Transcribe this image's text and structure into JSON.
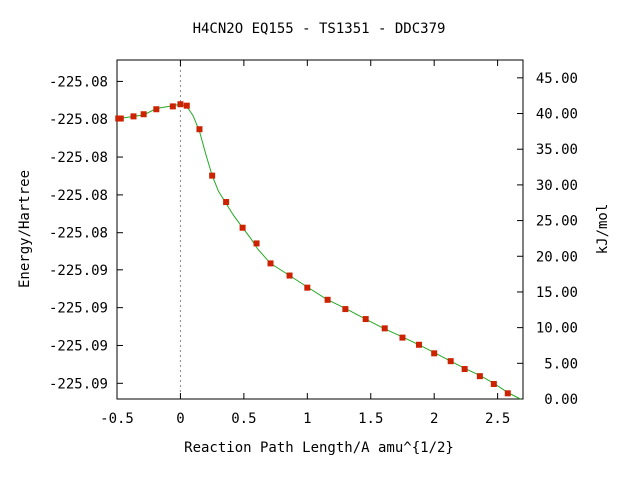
{
  "chart_data": {
    "type": "line",
    "title": "H4CN2O   EQ155 - TS1351 - DDC379",
    "xlabel": "Reaction Path Length/A amu^{1/2}",
    "ylabel_left": "Energy/Hartree",
    "ylabel_right": "kJ/mol",
    "xlim": [
      -0.5,
      2.7
    ],
    "y_right_lim": [
      0,
      47.5
    ],
    "x_ticks": [
      {
        "value": -0.5,
        "label": "-0.5"
      },
      {
        "value": 0,
        "label": "0"
      },
      {
        "value": 0.5,
        "label": "0.5"
      },
      {
        "value": 1,
        "label": "1"
      },
      {
        "value": 1.5,
        "label": "1.5"
      },
      {
        "value": 2,
        "label": "2"
      },
      {
        "value": 2.5,
        "label": "2.5"
      }
    ],
    "y_left_ticks": [
      {
        "kj": 44.5,
        "label": "-225.08"
      },
      {
        "kj": 39.2,
        "label": "-225.08"
      },
      {
        "kj": 33.9,
        "label": "-225.08"
      },
      {
        "kj": 28.6,
        "label": "-225.08"
      },
      {
        "kj": 23.3,
        "label": "-225.08"
      },
      {
        "kj": 18.1,
        "label": "-225.09"
      },
      {
        "kj": 12.8,
        "label": "-225.09"
      },
      {
        "kj": 7.5,
        "label": "-225.09"
      },
      {
        "kj": 2.2,
        "label": "-225.09"
      }
    ],
    "y_right_ticks": [
      {
        "value": 0,
        "label": "0.00"
      },
      {
        "value": 5,
        "label": "5.00"
      },
      {
        "value": 10,
        "label": "10.00"
      },
      {
        "value": 15,
        "label": "15.00"
      },
      {
        "value": 20,
        "label": "20.00"
      },
      {
        "value": 25,
        "label": "25.00"
      },
      {
        "value": 30,
        "label": "30.00"
      },
      {
        "value": 35,
        "label": "35.00"
      },
      {
        "value": 40,
        "label": "40.00"
      },
      {
        "value": 45,
        "label": "45.00"
      }
    ],
    "ts_x": 0,
    "curve": {
      "x": [
        -0.5,
        -0.48,
        -0.37,
        -0.29,
        -0.19,
        -0.06,
        0.0,
        0.05,
        0.1,
        0.15,
        0.2,
        0.25,
        0.3,
        0.36,
        0.42,
        0.49,
        0.55,
        0.61,
        0.71,
        0.86,
        1.0,
        1.15,
        1.3,
        1.45,
        1.6,
        1.75,
        1.88,
        2.0,
        2.13,
        2.24,
        2.36,
        2.47,
        2.58,
        2.68
      ],
      "y": [
        39.3,
        39.3,
        39.6,
        39.8,
        40.7,
        41.1,
        41.3,
        41.0,
        39.7,
        37.5,
        34.3,
        31.3,
        29.1,
        27.4,
        25.7,
        24.0,
        22.6,
        21.0,
        19.0,
        17.3,
        15.7,
        14.0,
        12.7,
        11.3,
        9.9,
        8.7,
        7.6,
        6.5,
        5.3,
        4.3,
        3.3,
        2.2,
        0.9,
        0.0
      ]
    },
    "points": {
      "x": [
        -0.49,
        -0.47,
        -0.37,
        -0.29,
        -0.19,
        -0.06,
        0.0,
        0.05,
        0.15,
        0.25,
        0.36,
        0.49,
        0.6,
        0.71,
        0.86,
        1.0,
        1.16,
        1.3,
        1.46,
        1.61,
        1.75,
        1.88,
        2.0,
        2.13,
        2.24,
        2.36,
        2.47,
        2.58
      ],
      "y": [
        39.3,
        39.3,
        39.6,
        39.9,
        40.6,
        41.0,
        41.3,
        41.1,
        37.8,
        31.3,
        27.6,
        24.0,
        21.8,
        19.0,
        17.3,
        15.6,
        13.9,
        12.6,
        11.2,
        9.9,
        8.6,
        7.6,
        6.4,
        5.3,
        4.2,
        3.2,
        2.1,
        0.8
      ]
    },
    "colors": {
      "line": "#22aa22",
      "marker": "#cc2200",
      "ts_line": "#888888"
    }
  }
}
